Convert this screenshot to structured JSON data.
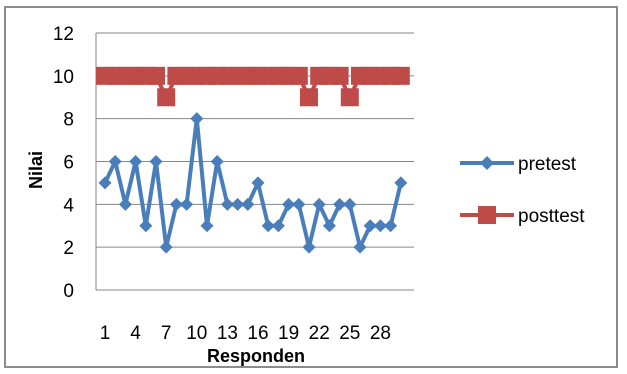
{
  "chart_data": {
    "type": "line",
    "title": "",
    "xlabel": "Responden",
    "ylabel": "Nilai",
    "ylim": [
      0,
      12
    ],
    "yticks": [
      "0",
      "2",
      "4",
      "6",
      "8",
      "10",
      "12"
    ],
    "x": [
      1,
      2,
      3,
      4,
      5,
      6,
      7,
      8,
      9,
      10,
      11,
      12,
      13,
      14,
      15,
      16,
      17,
      18,
      19,
      20,
      21,
      22,
      23,
      24,
      25,
      26,
      27,
      28,
      29,
      30
    ],
    "xtick_labels": [
      "1",
      "4",
      "7",
      "10",
      "13",
      "16",
      "19",
      "22",
      "25",
      "28"
    ],
    "xtick_positions": [
      1,
      4,
      7,
      10,
      13,
      16,
      19,
      22,
      25,
      28
    ],
    "grid": true,
    "legend_position": "right",
    "series": [
      {
        "name": "pretest",
        "color": "#4a7ebb",
        "marker": "diamond",
        "values": [
          5,
          6,
          4,
          6,
          3,
          6,
          2,
          4,
          4,
          8,
          3,
          6,
          4,
          4,
          4,
          5,
          3,
          3,
          4,
          4,
          2,
          4,
          3,
          4,
          4,
          2,
          3,
          3,
          3,
          5
        ]
      },
      {
        "name": "posttest",
        "color": "#be4b48",
        "marker": "square",
        "values": [
          10,
          10,
          10,
          10,
          10,
          10,
          9,
          10,
          10,
          10,
          10,
          10,
          10,
          10,
          10,
          10,
          10,
          10,
          10,
          10,
          9,
          10,
          10,
          10,
          9,
          10,
          10,
          10,
          10,
          10
        ]
      }
    ]
  }
}
